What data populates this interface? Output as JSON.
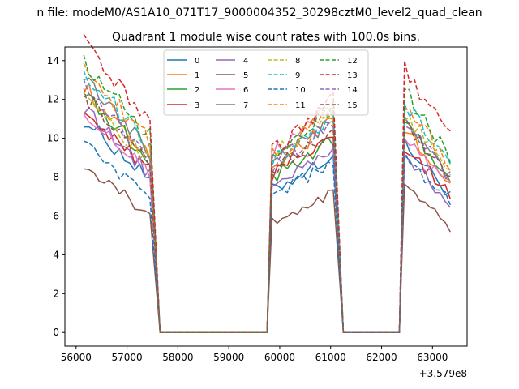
{
  "chart_data": {
    "type": "line",
    "suptitle": "n file: modeM0/AS1A10_071T17_9000004352_30298cztM0_level2_quad_clean",
    "title": "Quadrant 1 module wise count rates with 100.0s bins.",
    "xlabel": "",
    "ylabel": "",
    "x_offset_label": "+3.579e8",
    "xlim": [
      55780,
      63680
    ],
    "ylim": [
      -0.7,
      14.7
    ],
    "x_ticks": [
      56000,
      57000,
      58000,
      59000,
      60000,
      61000,
      62000,
      63000
    ],
    "y_ticks": [
      0,
      2,
      4,
      6,
      8,
      10,
      12,
      14
    ],
    "grid": false,
    "legend": {
      "placement": "top-center",
      "columns": 4
    },
    "segments": [
      {
        "start": 56150,
        "end": 57450
      },
      {
        "start": 59850,
        "end": 61050
      },
      {
        "start": 62450,
        "end": 63350
      }
    ],
    "gap_rate": 0,
    "series": [
      {
        "name": "0",
        "color": "#1f77b4",
        "dashed": false,
        "levels": [
          9.0,
          8.3,
          8.1
        ]
      },
      {
        "name": "1",
        "color": "#ff7f0e",
        "dashed": false,
        "levels": [
          10.4,
          9.8,
          8.7
        ]
      },
      {
        "name": "2",
        "color": "#2ca02c",
        "dashed": false,
        "levels": [
          10.2,
          9.1,
          8.9
        ]
      },
      {
        "name": "3",
        "color": "#d62728",
        "dashed": false,
        "levels": [
          9.5,
          9.3,
          8.0
        ]
      },
      {
        "name": "4",
        "color": "#9467bd",
        "dashed": false,
        "levels": [
          9.4,
          8.6,
          7.6
        ]
      },
      {
        "name": "5",
        "color": "#8c564b",
        "dashed": false,
        "levels": [
          7.0,
          6.5,
          6.2
        ]
      },
      {
        "name": "6",
        "color": "#e377c2",
        "dashed": false,
        "levels": [
          9.3,
          10.5,
          8.5
        ]
      },
      {
        "name": "7",
        "color": "#7f7f7f",
        "dashed": false,
        "levels": [
          10.7,
          10.0,
          9.2
        ]
      },
      {
        "name": "8",
        "color": "#bcbd22",
        "dashed": true,
        "levels": [
          10.1,
          10.4,
          9.4
        ]
      },
      {
        "name": "9",
        "color": "#17becf",
        "dashed": true,
        "levels": [
          11.0,
          10.0,
          9.9
        ]
      },
      {
        "name": "10",
        "color": "#1f77b4",
        "dashed": true,
        "levels": [
          8.0,
          8.0,
          7.6
        ]
      },
      {
        "name": "11",
        "color": "#ff7f0e",
        "dashed": true,
        "levels": [
          11.2,
          10.3,
          9.8
        ]
      },
      {
        "name": "12",
        "color": "#2ca02c",
        "dashed": true,
        "levels": [
          11.5,
          10.6,
          10.4
        ]
      },
      {
        "name": "13",
        "color": "#d62728",
        "dashed": true,
        "levels": [
          12.3,
          10.8,
          11.3
        ]
      },
      {
        "name": "14",
        "color": "#9467bd",
        "dashed": true,
        "levels": [
          10.4,
          9.8,
          9.0
        ]
      },
      {
        "name": "15",
        "color": "#8c564b",
        "dashed": true,
        "levels": [
          10.0,
          9.5,
          9.0
        ]
      }
    ]
  }
}
